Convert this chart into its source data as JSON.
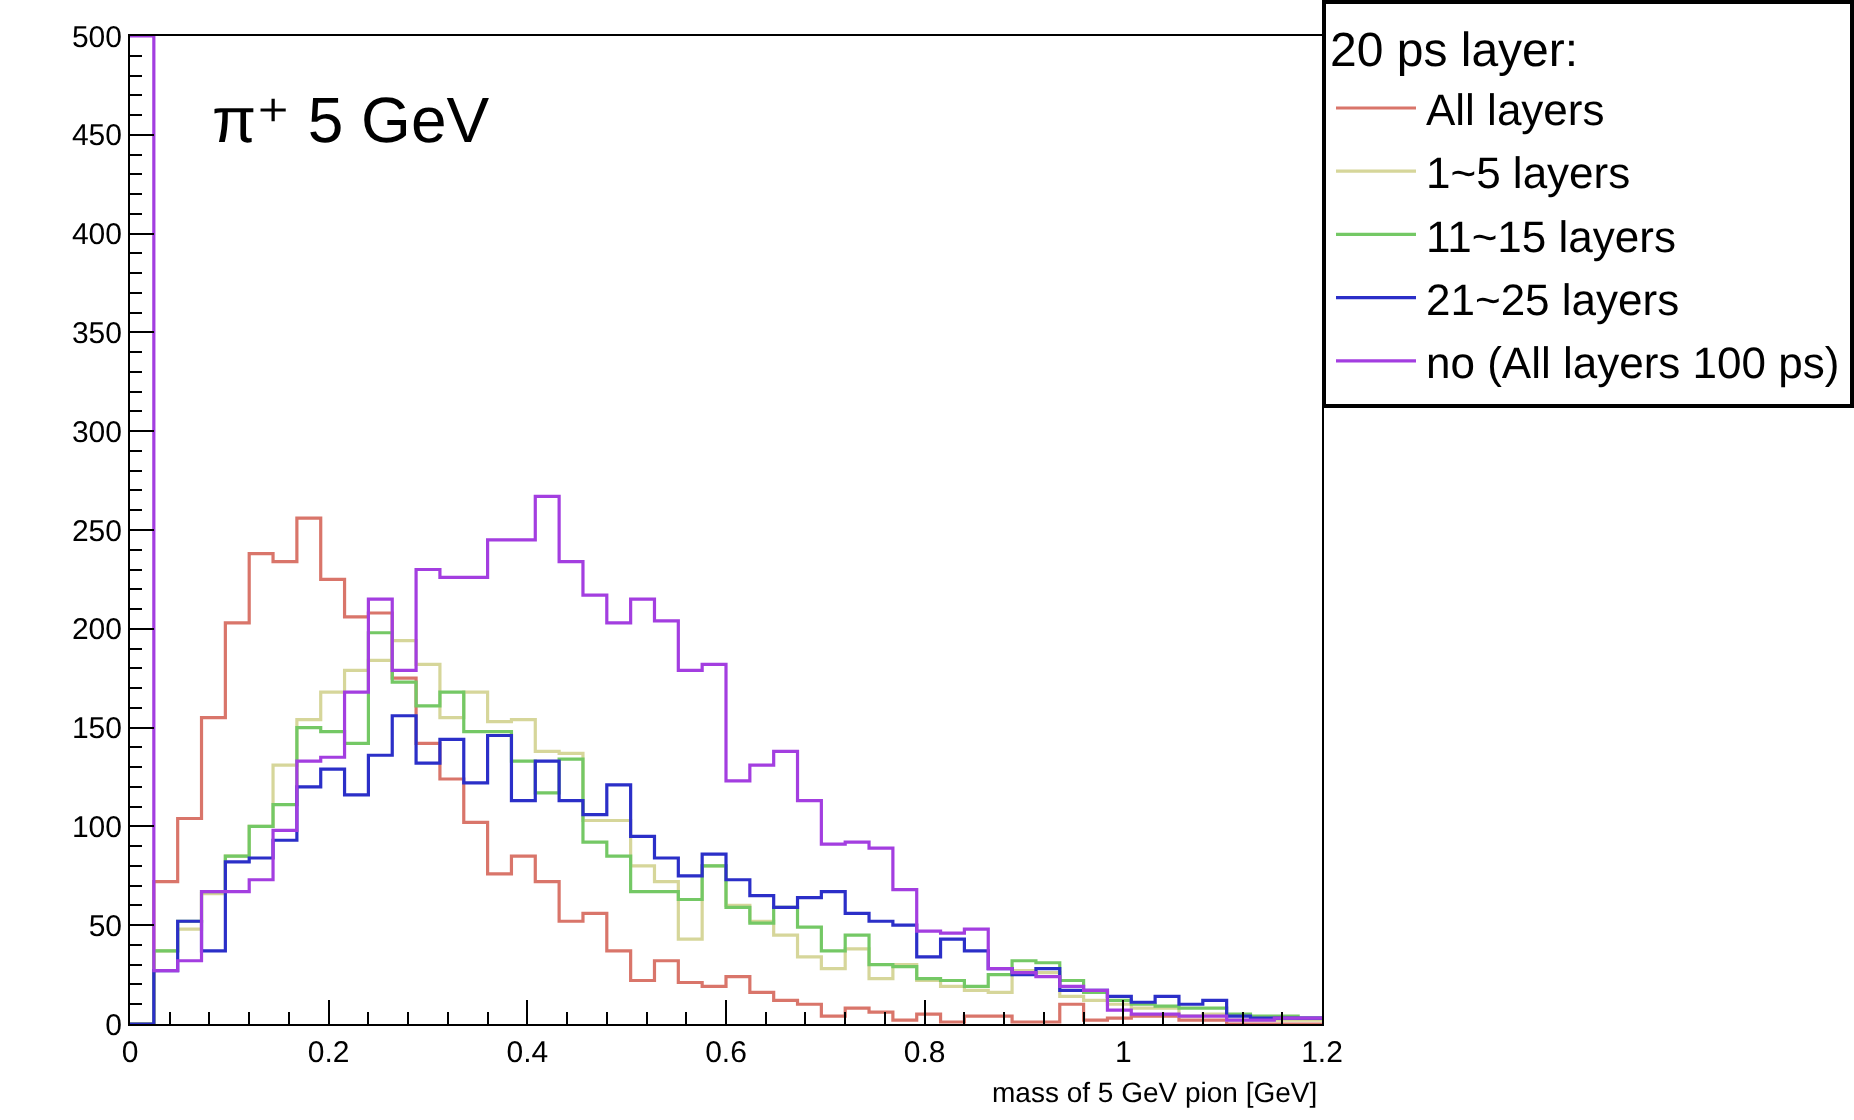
{
  "chart_data": {
    "type": "histogram",
    "xlabel": "mass of 5 GeV pion [GeV]",
    "legend_title": "20 ps layer:",
    "annotations": [
      "π⁺ 5 GeV"
    ],
    "bins": [
      0,
      0.024,
      0.048,
      0.072,
      0.096,
      0.12,
      0.144,
      0.168,
      0.192,
      0.216,
      0.24,
      0.264,
      0.288,
      0.312,
      0.336,
      0.36,
      0.384,
      0.408,
      0.432,
      0.456,
      0.48,
      0.504,
      0.528,
      0.552,
      0.576,
      0.6,
      0.624,
      0.648,
      0.672,
      0.696,
      0.72,
      0.744,
      0.768,
      0.792,
      0.816,
      0.84,
      0.864,
      0.888,
      0.912,
      0.936,
      0.96,
      0.984,
      1.008,
      1.032,
      1.056,
      1.08,
      1.104,
      1.128,
      1.152,
      1.176,
      1.2
    ],
    "series": [
      {
        "name": "All layers",
        "color": "#d9756a",
        "values": [
          0,
          72,
          104,
          155,
          203,
          238,
          234,
          256,
          225,
          206,
          208,
          175,
          142,
          124,
          102,
          76,
          85,
          72,
          52,
          56,
          37,
          22,
          32,
          21,
          19,
          24,
          16,
          12,
          10,
          4,
          8,
          6,
          2,
          5,
          1,
          4,
          4,
          1,
          1,
          10,
          2,
          3,
          4,
          4,
          2,
          2,
          0,
          0,
          0,
          0
        ]
      },
      {
        "name": "1~5 layers",
        "color": "#d6d69a",
        "values": [
          0,
          37,
          48,
          66,
          85,
          100,
          131,
          154,
          168,
          179,
          184,
          194,
          182,
          155,
          168,
          153,
          154,
          138,
          137,
          103,
          103,
          80,
          72,
          43,
          80,
          60,
          52,
          45,
          34,
          28,
          38,
          23,
          30,
          22,
          19,
          17,
          16,
          27,
          26,
          14,
          12,
          10,
          8,
          8,
          4,
          5,
          2,
          2,
          2,
          2
        ]
      },
      {
        "name": "11~15 layers",
        "color": "#74c865",
        "values": [
          0,
          37,
          52,
          67,
          85,
          100,
          111,
          150,
          148,
          142,
          198,
          173,
          161,
          168,
          148,
          148,
          133,
          117,
          134,
          92,
          85,
          67,
          67,
          63,
          80,
          59,
          51,
          59,
          49,
          37,
          45,
          30,
          29,
          23,
          22,
          19,
          25,
          32,
          31,
          22,
          16,
          12,
          10,
          9,
          8,
          8,
          5,
          4,
          4,
          3
        ]
      },
      {
        "name": "21~25 layers",
        "color": "#2b2fc8",
        "values": [
          0,
          27,
          52,
          37,
          82,
          84,
          93,
          120,
          129,
          116,
          136,
          156,
          132,
          144,
          122,
          146,
          113,
          133,
          113,
          106,
          121,
          95,
          84,
          75,
          86,
          73,
          65,
          59,
          64,
          67,
          56,
          52,
          50,
          34,
          43,
          37,
          28,
          25,
          28,
          17,
          17,
          14,
          11,
          14,
          10,
          12,
          4,
          3,
          3,
          3
        ]
      },
      {
        "name": "no (All layers 100 ps)",
        "color": "#a33ee0",
        "values": [
          500,
          27,
          32,
          67,
          67,
          73,
          98,
          133,
          135,
          168,
          215,
          179,
          230,
          226,
          226,
          245,
          245,
          267,
          234,
          217,
          203,
          215,
          204,
          179,
          182,
          123,
          131,
          138,
          113,
          91,
          92,
          89,
          68,
          47,
          46,
          48,
          28,
          26,
          24,
          19,
          17,
          7,
          5,
          5,
          4,
          4,
          2,
          2,
          3,
          3
        ]
      }
    ],
    "xlim": [
      0,
      1.2
    ],
    "xticks": [
      0,
      0.2,
      0.4,
      0.6,
      0.8,
      1,
      1.2
    ],
    "ylim": [
      0,
      500
    ],
    "yticks": [
      0,
      50,
      100,
      150,
      200,
      250,
      300,
      350,
      400,
      450,
      500
    ],
    "grid": false,
    "legend": "top right"
  }
}
